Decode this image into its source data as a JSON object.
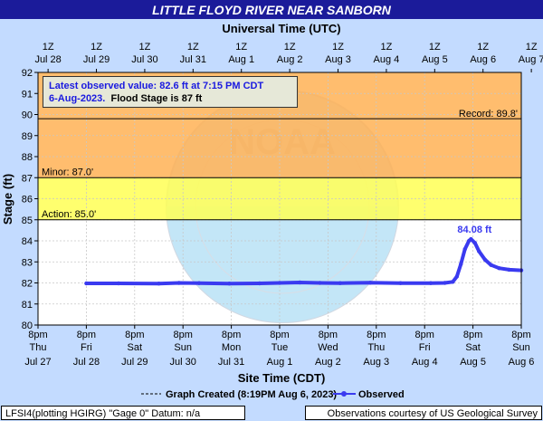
{
  "title": "LITTLE FLOYD RIVER NEAR SANBORN",
  "top_axis_title": "Universal Time (UTC)",
  "bottom_axis_title": "Site Time (CDT)",
  "ylabel": "Stage (ft)",
  "info": {
    "line1": "Latest observed value: 82.6 ft at 7:15 PM CDT",
    "date": "6-Aug-2023.",
    "flood_stage": "Flood Stage is 87 ft"
  },
  "legend": {
    "created": "Graph Created (8:19PM Aug 6, 2023)",
    "observed": "Observed"
  },
  "footer": {
    "left": "LFSI4(plotting HGIRG) \"Gage 0\" Datum: n/a",
    "right": "Observations courtesy of US Geological Survey"
  },
  "colors": {
    "title_bg": "#1b1b9a",
    "page_bg": "#c3dbff",
    "record_band": "#ffb255",
    "minor_band": "#ffff55",
    "observed": "#3a3af0"
  },
  "chart_data": {
    "type": "line",
    "ylim": [
      80,
      92
    ],
    "yticks": [
      80,
      81,
      82,
      83,
      84,
      85,
      86,
      87,
      88,
      89,
      90,
      91,
      92
    ],
    "xlim_hours": [
      0,
      240
    ],
    "top_ticks": [
      {
        "h1": "1Z",
        "h2": "Jul 28"
      },
      {
        "h1": "1Z",
        "h2": "Jul 29"
      },
      {
        "h1": "1Z",
        "h2": "Jul 30"
      },
      {
        "h1": "1Z",
        "h2": "Jul 31"
      },
      {
        "h1": "1Z",
        "h2": "Aug 1"
      },
      {
        "h1": "1Z",
        "h2": "Aug 2"
      },
      {
        "h1": "1Z",
        "h2": "Aug 3"
      },
      {
        "h1": "1Z",
        "h2": "Aug 4"
      },
      {
        "h1": "1Z",
        "h2": "Aug 5"
      },
      {
        "h1": "1Z",
        "h2": "Aug 6"
      },
      {
        "h1": "1Z",
        "h2": "Aug 7"
      }
    ],
    "bottom_ticks": [
      {
        "t": "8pm",
        "d": "Thu",
        "m": "Jul 27"
      },
      {
        "t": "8pm",
        "d": "Fri",
        "m": "Jul 28"
      },
      {
        "t": "8pm",
        "d": "Sat",
        "m": "Jul 29"
      },
      {
        "t": "8pm",
        "d": "Sun",
        "m": "Jul 30"
      },
      {
        "t": "8pm",
        "d": "Mon",
        "m": "Jul 31"
      },
      {
        "t": "8pm",
        "d": "Tue",
        "m": "Aug 1"
      },
      {
        "t": "8pm",
        "d": "Wed",
        "m": "Aug 2"
      },
      {
        "t": "8pm",
        "d": "Thu",
        "m": "Aug 3"
      },
      {
        "t": "8pm",
        "d": "Fri",
        "m": "Aug 4"
      },
      {
        "t": "8pm",
        "d": "Sat",
        "m": "Aug 5"
      },
      {
        "t": "8pm",
        "d": "Sun",
        "m": "Aug 6"
      }
    ],
    "thresholds": [
      {
        "label": "Record:  89.8'",
        "value": 89.8
      },
      {
        "label": "Minor:  87.0'",
        "value": 87.0
      },
      {
        "label": "Action:  85.0'",
        "value": 85.0
      }
    ],
    "bands": [
      {
        "from": 87.0,
        "to": 92.0,
        "color": "#ffb255"
      },
      {
        "from": 85.0,
        "to": 87.0,
        "color": "#ffff55"
      }
    ],
    "peak_label": "84.08 ft",
    "peak": {
      "x": 215,
      "y": 84.08
    },
    "series": [
      {
        "name": "Observed",
        "points": [
          [
            24,
            81.98
          ],
          [
            40,
            81.98
          ],
          [
            60,
            81.97
          ],
          [
            70,
            82.0
          ],
          [
            80,
            81.99
          ],
          [
            95,
            81.97
          ],
          [
            110,
            81.98
          ],
          [
            120,
            82.0
          ],
          [
            130,
            82.02
          ],
          [
            140,
            82.0
          ],
          [
            150,
            81.99
          ],
          [
            165,
            82.01
          ],
          [
            180,
            81.99
          ],
          [
            195,
            81.99
          ],
          [
            202,
            82.0
          ],
          [
            206,
            82.05
          ],
          [
            208,
            82.3
          ],
          [
            210,
            82.9
          ],
          [
            212,
            83.6
          ],
          [
            214,
            84.0
          ],
          [
            215,
            84.08
          ],
          [
            217,
            83.9
          ],
          [
            219,
            83.5
          ],
          [
            222,
            83.1
          ],
          [
            225,
            82.85
          ],
          [
            229,
            82.7
          ],
          [
            234,
            82.63
          ],
          [
            240,
            82.6
          ]
        ]
      }
    ]
  }
}
